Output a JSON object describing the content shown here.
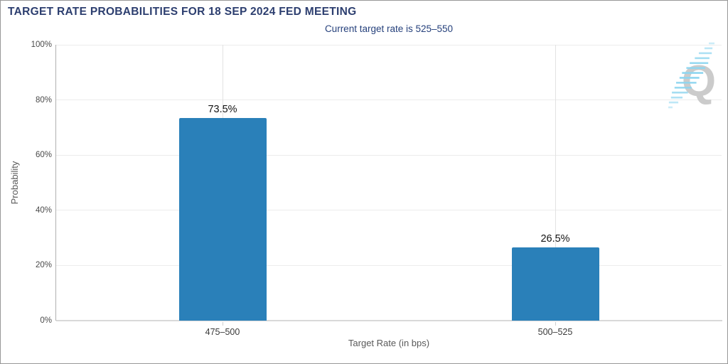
{
  "header": {
    "title": "TARGET RATE PROBABILITIES FOR 18 SEP 2024 FED MEETING",
    "subtitle": "Current target rate is 525–550"
  },
  "chart_data": {
    "type": "bar",
    "title": "TARGET RATE PROBABILITIES FOR 18 SEP 2024 FED MEETING",
    "subtitle": "Current target rate is 525–550",
    "categories": [
      "475–500",
      "500–525"
    ],
    "values": [
      73.5,
      26.5
    ],
    "value_labels": [
      "73.5%",
      "26.5%"
    ],
    "xlabel": "Target Rate (in bps)",
    "ylabel": "Probability",
    "ylim": [
      0,
      100
    ],
    "yticks": [
      0,
      20,
      40,
      60,
      80,
      100
    ],
    "ytick_labels": [
      "0%",
      "20%",
      "40%",
      "60%",
      "80%",
      "100%"
    ],
    "bar_color": "#2a80b9",
    "grid": true,
    "legend": "none"
  },
  "watermark": {
    "letter": "Q",
    "stripe_color": "#8fd6f0"
  },
  "colors": {
    "title_navy": "#2c3e6f",
    "subtitle_navy": "#26417c",
    "bar_blue": "#2a80b9"
  }
}
